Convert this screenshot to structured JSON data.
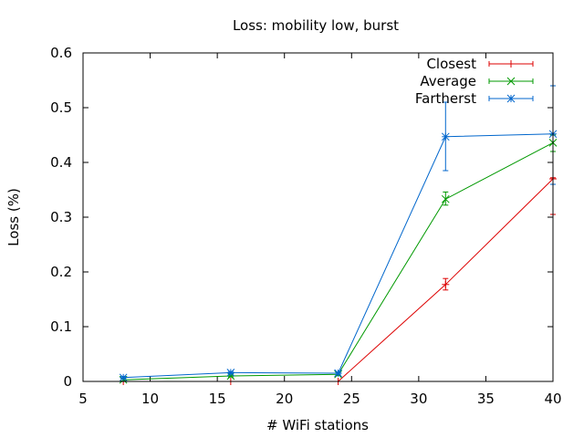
{
  "chart_data": {
    "type": "line",
    "title": "Loss: mobility low, burst",
    "xlabel": "# WiFi stations",
    "ylabel": "Loss (%)",
    "xlim": [
      5,
      40
    ],
    "ylim": [
      0,
      0.6
    ],
    "x_ticks": [
      5,
      10,
      15,
      20,
      25,
      30,
      35,
      40
    ],
    "y_ticks": [
      0,
      0.1,
      0.2,
      0.3,
      0.4,
      0.5,
      0.6
    ],
    "x_tick_labels": [
      "5",
      "10",
      "15",
      "20",
      "25",
      "30",
      "35",
      "40"
    ],
    "y_tick_labels": [
      "0",
      "0.1",
      "0.2",
      "0.3",
      "0.4",
      "0.5",
      "0.6"
    ],
    "grid": false,
    "legend_position": "top-right",
    "x": [
      8,
      16,
      24,
      32,
      40
    ],
    "series": [
      {
        "name": "Closest",
        "color": "#dd0000",
        "marker": "plus",
        "values": [
          0.0,
          0.0,
          0.0,
          0.177,
          0.37
        ],
        "error_low": [
          0.0,
          0.0,
          0.0,
          0.167,
          0.305
        ],
        "error_high": [
          0.0,
          0.0,
          0.0,
          0.188,
          0.372
        ]
      },
      {
        "name": "Average",
        "color": "#009900",
        "marker": "cross",
        "values": [
          0.003,
          0.01,
          0.013,
          0.333,
          0.436
        ],
        "error_low": [
          0.001,
          0.008,
          0.011,
          0.322,
          0.42
        ],
        "error_high": [
          0.005,
          0.012,
          0.015,
          0.346,
          0.45
        ]
      },
      {
        "name": "Fartherst",
        "color": "#0066cc",
        "marker": "star",
        "values": [
          0.007,
          0.016,
          0.015,
          0.447,
          0.452
        ],
        "error_low": [
          0.005,
          0.014,
          0.013,
          0.385,
          0.36
        ],
        "error_high": [
          0.009,
          0.018,
          0.017,
          0.51,
          0.54
        ]
      }
    ]
  }
}
